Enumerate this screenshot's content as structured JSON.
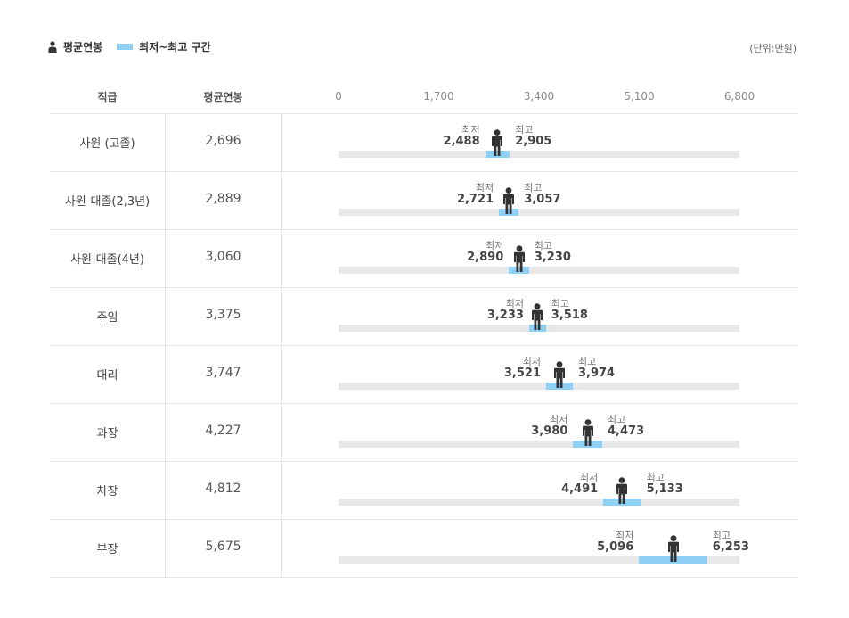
{
  "legend": {
    "avg_label": "평균연봉",
    "range_label": "최저~최고 구간",
    "range_color": "#8fd0f7",
    "figure_color": "#333333"
  },
  "unit_label": "(단위:만원)",
  "headers": {
    "grade": "직급",
    "avg": "평균연봉"
  },
  "labels": {
    "min": "최저",
    "max": "최고"
  },
  "chart_data": {
    "type": "range-bar",
    "x_range": [
      0,
      6800
    ],
    "ticks": [
      "0",
      "1,700",
      "3,400",
      "5,100",
      "6,800"
    ],
    "tick_values": [
      0,
      1700,
      3400,
      5100,
      6800
    ],
    "categories": [
      "사원 (고졸)",
      "사원-대졸(2,3년)",
      "사원-대졸(4년)",
      "주임",
      "대리",
      "과장",
      "차장",
      "부장"
    ],
    "avg": [
      2696,
      2889,
      3060,
      3375,
      3747,
      4227,
      4812,
      5675
    ],
    "min": [
      2488,
      2721,
      2890,
      3233,
      3521,
      3980,
      4491,
      5096
    ],
    "max": [
      2905,
      3057,
      3230,
      3518,
      3974,
      4473,
      5133,
      6253
    ],
    "avg_text": [
      "2,696",
      "2,889",
      "3,060",
      "3,375",
      "3,747",
      "4,227",
      "4,812",
      "5,675"
    ],
    "min_text": [
      "2,488",
      "2,721",
      "2,890",
      "3,233",
      "3,521",
      "3,980",
      "4,491",
      "5,096"
    ],
    "max_text": [
      "2,905",
      "3,057",
      "3,230",
      "3,518",
      "3,974",
      "4,473",
      "5,133",
      "6,253"
    ]
  }
}
